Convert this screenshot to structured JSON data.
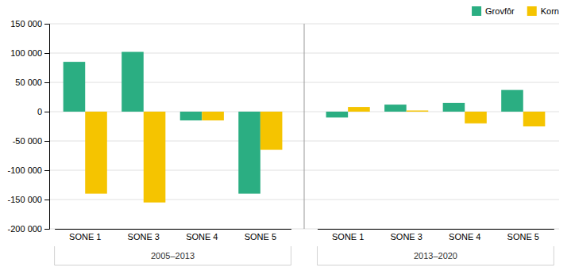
{
  "chart_data": {
    "type": "bar",
    "categories": [
      "SONE 1",
      "SONE 3",
      "SONE 4",
      "SONE 5",
      "SONE 1",
      "SONE 3",
      "SONE 4",
      "SONE 5"
    ],
    "annotations": [
      "2005–2013",
      "2013–2020"
    ],
    "series": [
      {
        "name": "Grovfôr",
        "color": "#2BAE82",
        "values": [
          85000,
          102000,
          -15000,
          -140000,
          -10000,
          12000,
          15000,
          37000
        ]
      },
      {
        "name": "Korn",
        "color": "#F5C400",
        "values": [
          -140000,
          -155000,
          -15000,
          -65000,
          8000,
          2000,
          -20000,
          -25000
        ]
      }
    ],
    "ylim": [
      -200000,
      150000
    ],
    "yticks": [
      {
        "value": -200000,
        "label": "-200 000"
      },
      {
        "value": -150000,
        "label": "-150 000"
      },
      {
        "value": -100000,
        "label": "-100 000"
      },
      {
        "value": -50000,
        "label": "-50 000"
      },
      0,
      {
        "value": 50000,
        "label": "50 000"
      },
      {
        "value": 100000,
        "label": "100 000"
      },
      {
        "value": 150000,
        "label": "150 000"
      }
    ],
    "grid": true,
    "legend": "upper right"
  }
}
